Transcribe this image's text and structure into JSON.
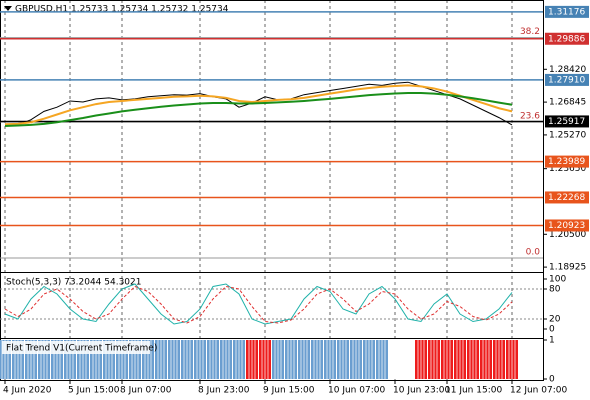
{
  "chart_data": [
    {
      "type": "line",
      "title": "GBPUSD,H1  1.25733 1.25734 1.25732 1.25734",
      "categories": [
        "4 Jun 2020",
        null,
        null,
        null,
        null,
        "5 Jun 15:00",
        null,
        null,
        null,
        "8 Jun 07:00",
        null,
        null,
        null,
        null,
        null,
        "8 Jun 23:00",
        null,
        null,
        null,
        null,
        "9 Jun 15:00",
        null,
        null,
        null,
        null,
        "10 Jun 07:00",
        null,
        null,
        null,
        null,
        "10 Jun 23:00",
        null,
        null,
        null,
        "11 Jun 15:00",
        null,
        null,
        null,
        null,
        "12 Jun 07:00"
      ],
      "series": [
        {
          "color": "#000000",
          "values": [
            1.258,
            1.2575,
            1.26,
            1.264,
            1.266,
            1.269,
            1.2685,
            1.27,
            1.2705,
            1.2695,
            1.27,
            1.271,
            1.2715,
            1.272,
            1.2718,
            1.2725,
            1.271,
            1.27,
            1.266,
            1.268,
            1.271,
            1.2695,
            1.27,
            1.272,
            1.273,
            1.274,
            1.275,
            1.276,
            1.277,
            1.2765,
            1.2775,
            1.278,
            1.276,
            1.274,
            1.272,
            1.27,
            1.267,
            1.264,
            1.261,
            1.2575
          ]
        },
        {
          "color": "#f5a623",
          "values": [
            1.2578,
            1.258,
            1.2588,
            1.2605,
            1.2625,
            1.2645,
            1.266,
            1.2675,
            1.2685,
            1.269,
            1.2695,
            1.27,
            1.2705,
            1.271,
            1.2712,
            1.2715,
            1.2712,
            1.2705,
            1.269,
            1.2685,
            1.269,
            1.2695,
            1.2698,
            1.2705,
            1.2715,
            1.2725,
            1.2735,
            1.2745,
            1.2752,
            1.2758,
            1.2762,
            1.2765,
            1.276,
            1.275,
            1.2735,
            1.2715,
            1.2695,
            1.2675,
            1.2655,
            1.264
          ]
        },
        {
          "color": "#1a8f1a",
          "values": [
            1.257,
            1.2572,
            1.2575,
            1.258,
            1.2588,
            1.2598,
            1.2608,
            1.262,
            1.263,
            1.264,
            1.2648,
            1.2655,
            1.2662,
            1.2668,
            1.2673,
            1.2678,
            1.268,
            1.268,
            1.2678,
            1.2678,
            1.268,
            1.2683,
            1.2686,
            1.269,
            1.2695,
            1.27,
            1.2706,
            1.2712,
            1.2718,
            1.2722,
            1.2726,
            1.2728,
            1.2728,
            1.2725,
            1.272,
            1.2712,
            1.2703,
            1.2693,
            1.2682,
            1.2672
          ]
        }
      ],
      "ylim": [
        1.1869,
        1.3165
      ],
      "yticks": [
        {
          "value": 1.2842,
          "label": "1.28420"
        },
        1.26845,
        {
          "value": 1.2527,
          "label": "1.25270"
        },
        {
          "value": 1.2365,
          "label": "1.23650"
        },
        {
          "value": 1.205,
          "label": "1.20500"
        },
        1.18925
      ],
      "levels": [
        {
          "value": 1.31176,
          "color": "#4682b4"
        },
        {
          "value": 1.29886,
          "color": "#d03030"
        },
        {
          "value": 1.2791,
          "label": "1.27910",
          "color": "#4682b4"
        },
        {
          "value": 1.25917,
          "color": "#000000"
        },
        {
          "value": 1.23989,
          "color": "#e8541c"
        },
        {
          "value": 1.22268,
          "color": "#e8541c"
        },
        {
          "value": 1.20923,
          "color": "#e8541c"
        }
      ],
      "fib": [
        {
          "label": "38.2",
          "value": 1.2994
        },
        {
          "label": "23.6",
          "value": 1.2589
        },
        {
          "label": "0.0",
          "value": 1.1936
        }
      ]
    },
    {
      "type": "stoch",
      "title": "Stoch(5,3,3) 73.2044 54.3021",
      "series": [
        {
          "color": "#20b2aa",
          "values": [
            30,
            20,
            60,
            85,
            70,
            40,
            20,
            15,
            50,
            80,
            90,
            60,
            30,
            10,
            15,
            40,
            85,
            90,
            70,
            20,
            10,
            15,
            20,
            60,
            85,
            75,
            40,
            30,
            70,
            85,
            60,
            20,
            15,
            50,
            70,
            30,
            15,
            20,
            40,
            73.2044
          ]
        },
        {
          "color": "#e03030",
          "values": [
            40,
            25,
            40,
            70,
            80,
            60,
            35,
            20,
            30,
            60,
            85,
            75,
            50,
            20,
            12,
            25,
            60,
            85,
            80,
            45,
            15,
            12,
            18,
            40,
            70,
            80,
            60,
            35,
            50,
            75,
            70,
            40,
            20,
            30,
            55,
            45,
            25,
            18,
            30,
            54.3021
          ]
        }
      ],
      "ylim": [
        -18,
        112
      ],
      "yticks": [
        100,
        80,
        20,
        0
      ],
      "levels": [
        80,
        20
      ]
    },
    {
      "type": "histogram",
      "title": "Flat Trend V1(Current Timeframe)",
      "values": [
        1,
        1,
        1,
        1,
        1,
        1,
        1,
        1,
        1,
        1,
        1,
        1,
        1,
        1,
        1,
        1,
        1,
        1,
        1,
        1,
        1,
        1,
        1,
        1,
        1,
        1,
        1,
        1,
        1,
        1,
        1,
        1,
        1,
        1,
        1,
        1,
        1,
        1,
        1,
        1
      ],
      "colors": [
        "#6a9ed0",
        "#6a9ed0",
        "#6a9ed0",
        "#6a9ed0",
        "#6a9ed0",
        "#6a9ed0",
        "#6a9ed0",
        "#6a9ed0",
        "#6a9ed0",
        "#6a9ed0",
        "#6a9ed0",
        "#6a9ed0",
        "#6a9ed0",
        "#6a9ed0",
        "#6a9ed0",
        "#6a9ed0",
        "#6a9ed0",
        "#6a9ed0",
        "#6a9ed0",
        "#ee1c1c",
        "#ee1c1c",
        "#6a9ed0",
        "#6a9ed0",
        "#6a9ed0",
        "#6a9ed0",
        "#6a9ed0",
        "#6a9ed0",
        "#6a9ed0",
        "#6a9ed0",
        "#6a9ed0",
        "#ffffff",
        "#ffffff",
        "#ee1c1c",
        "#ee1c1c",
        "#ee1c1c",
        "#ee1c1c",
        "#ee1c1c",
        "#ee1c1c",
        "#ee1c1c",
        "#ee1c1c"
      ],
      "ylim": [
        0,
        1
      ],
      "yticks": [
        1,
        0
      ]
    }
  ]
}
